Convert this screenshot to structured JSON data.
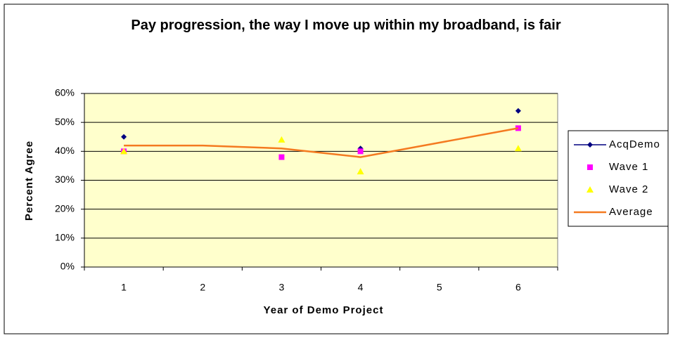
{
  "chart_data": {
    "type": "line",
    "title": "Pay progression, the way I move up within my broadband, is fair",
    "xlabel": "Year of Demo Project",
    "ylabel": "Percent Agree",
    "categories": [
      "1",
      "2",
      "3",
      "4",
      "5",
      "6"
    ],
    "series": [
      {
        "name": "AcqDemo",
        "color": "#000080",
        "marker": "diamond",
        "line": true,
        "values": [
          45,
          null,
          null,
          41,
          null,
          54
        ]
      },
      {
        "name": "Wave 1",
        "color": "#ff00ff",
        "marker": "square",
        "line": false,
        "values": [
          40,
          null,
          38,
          40,
          null,
          48
        ]
      },
      {
        "name": "Wave 2",
        "color": "#ffff00",
        "marker": "triangle",
        "line": false,
        "values": [
          40,
          null,
          44,
          33,
          null,
          41
        ]
      },
      {
        "name": "Average",
        "color": "#f47a20",
        "marker": "none",
        "line": true,
        "values": [
          42,
          42,
          41,
          38,
          43,
          48
        ]
      }
    ],
    "ylim": [
      0,
      60
    ],
    "yticks": [
      {
        "value": 0,
        "label": "0%"
      },
      {
        "value": 10,
        "label": "10%"
      },
      {
        "value": 20,
        "label": "20%"
      },
      {
        "value": 30,
        "label": "30%"
      },
      {
        "value": 40,
        "label": "40%"
      },
      {
        "value": 50,
        "label": "50%"
      },
      {
        "value": 60,
        "label": "60%"
      }
    ],
    "grid": true,
    "legend": "right",
    "background": "#ffffcc"
  }
}
